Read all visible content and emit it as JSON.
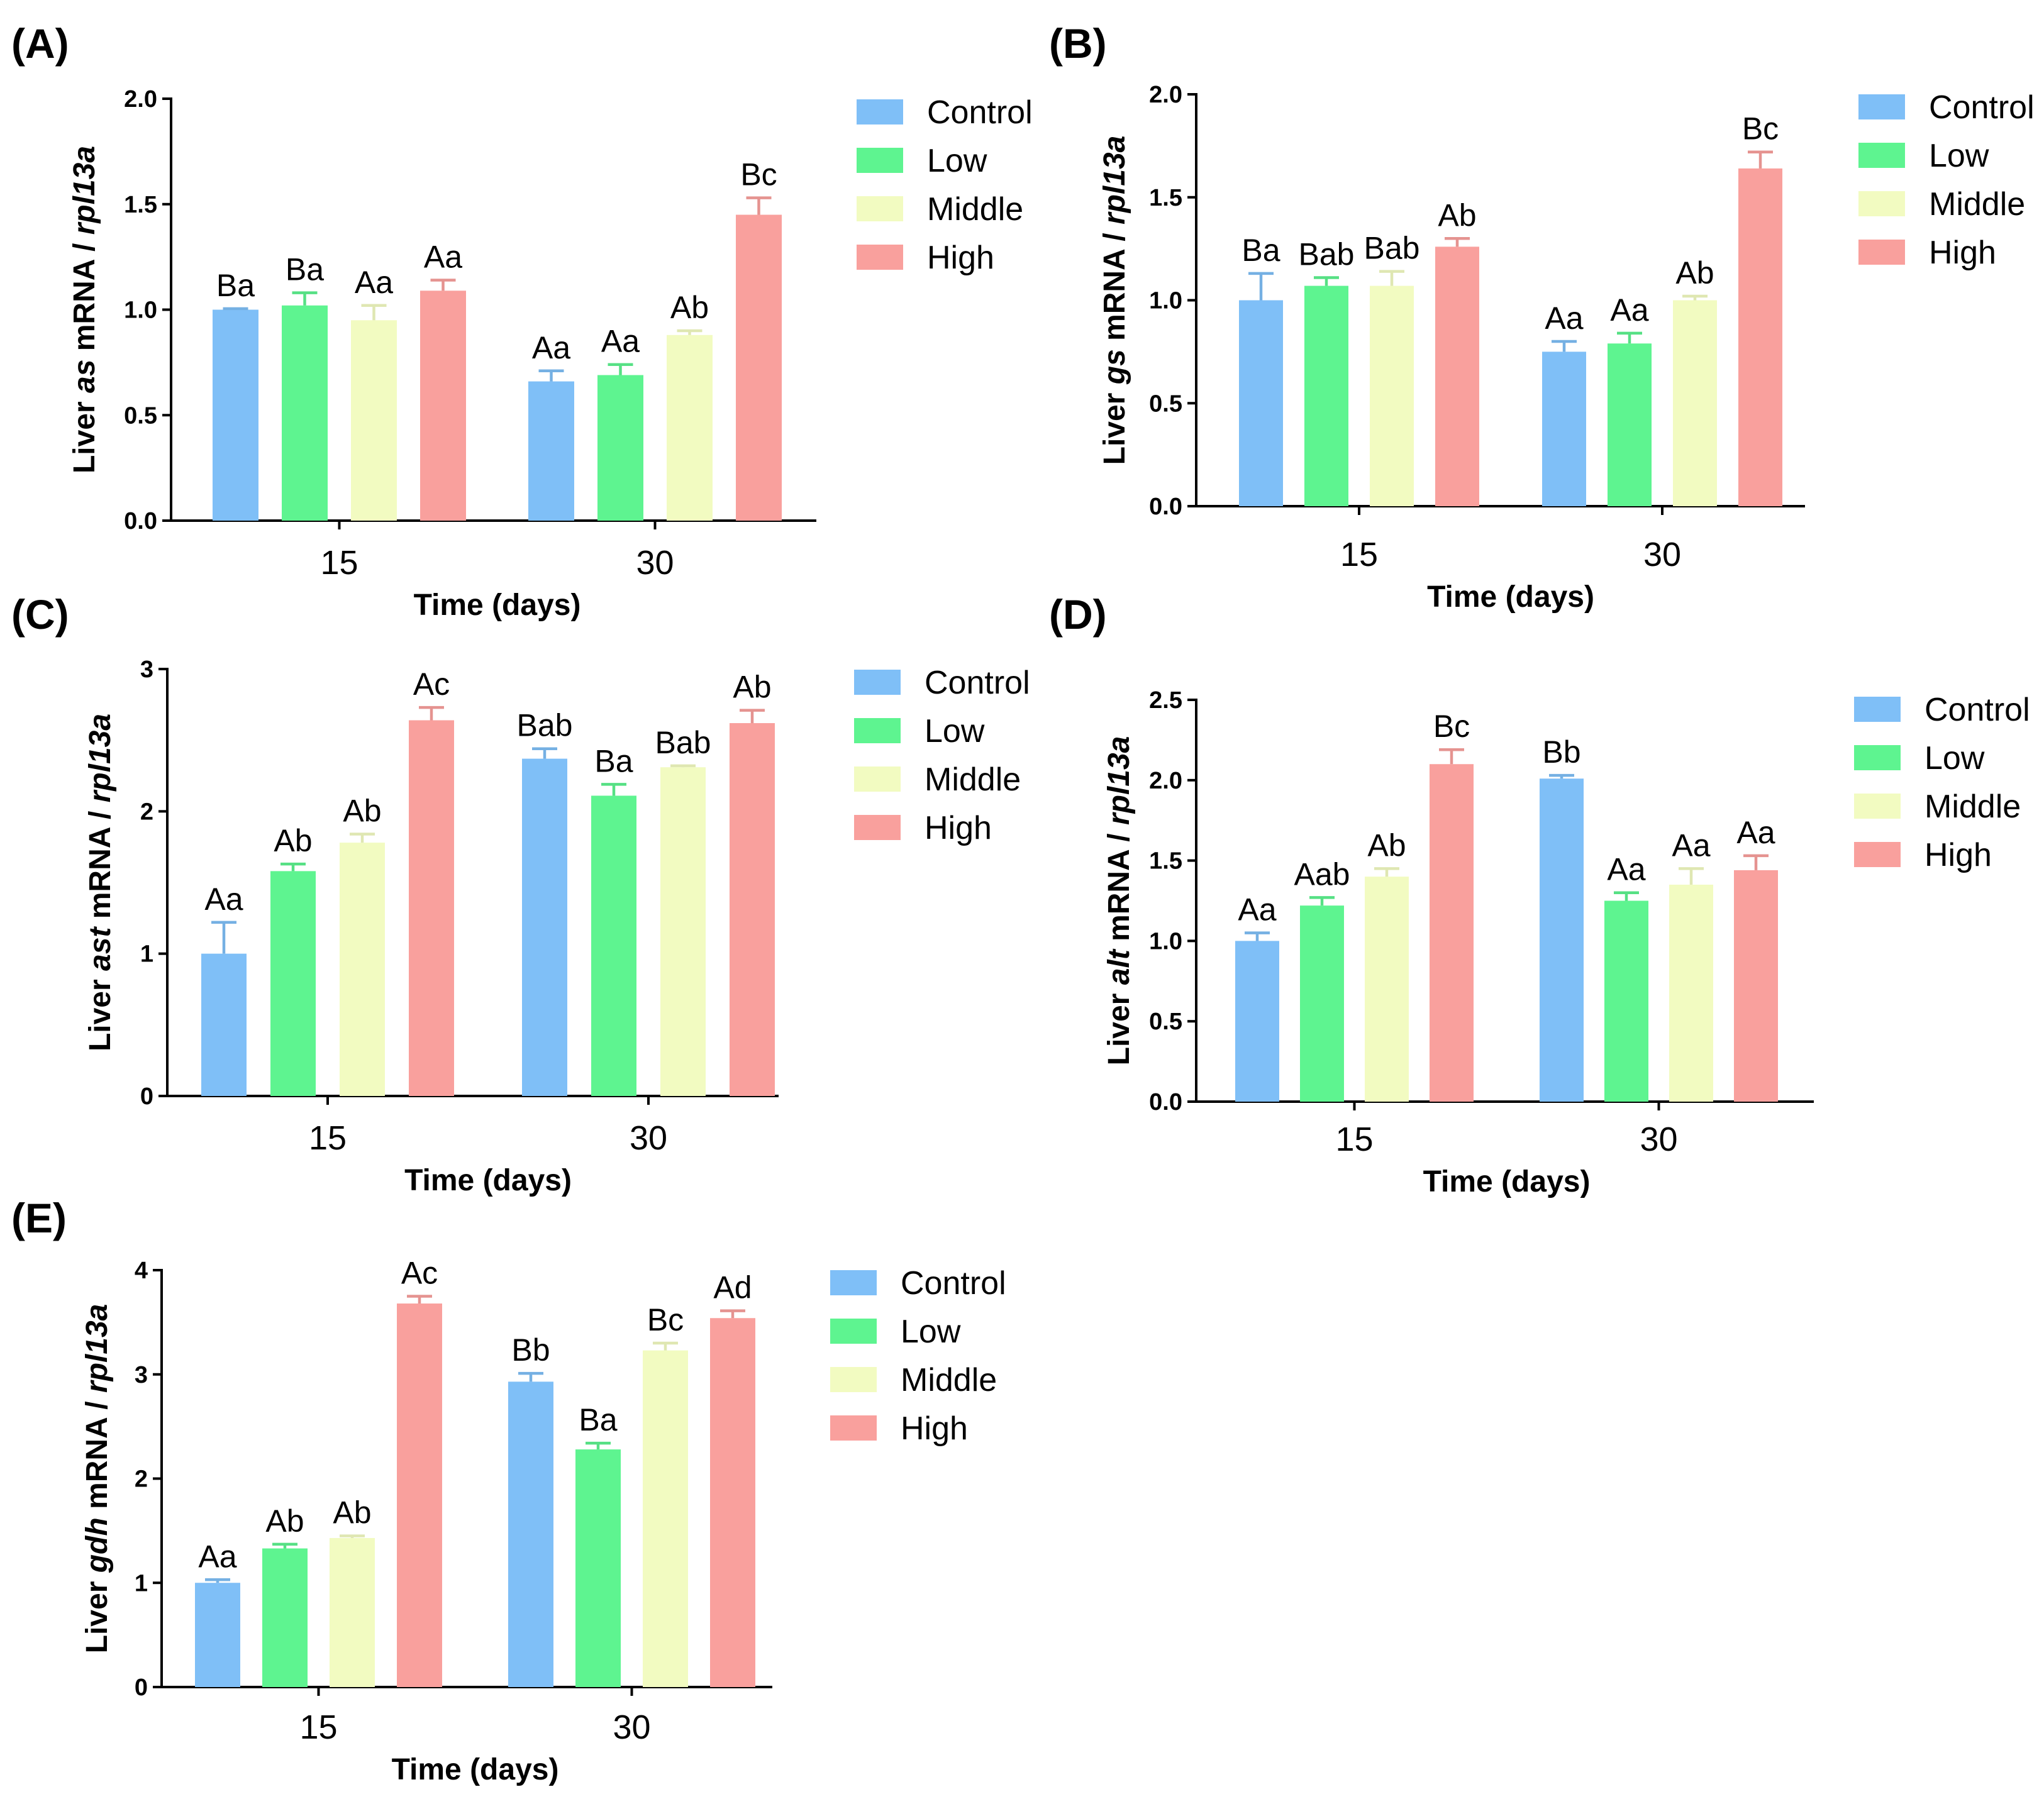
{
  "colors": {
    "Control": "#7fbff7",
    "Low": "#5ef490",
    "Middle": "#f2fbc1",
    "High": "#f9a09d"
  },
  "chart_data": [
    {
      "type": "bar",
      "panel": "(A)",
      "gene": "as",
      "ylabel_prefix": "Liver ",
      "ylabel_suffix": " mRNA / ",
      "ylabel_ref": "rpl13a",
      "xlabel": "Time (days)",
      "categories": [
        "15",
        "30"
      ],
      "ylim": [
        0,
        2.0
      ],
      "yticks": [
        "0.0",
        "0.5",
        "1.0",
        "1.5",
        "2.0"
      ],
      "yticks_values": [
        0,
        0.5,
        1.0,
        1.5,
        2.0
      ],
      "legend": [
        "Control",
        "Low",
        "Middle",
        "High"
      ],
      "series": [
        {
          "name": "Control",
          "values": [
            1.0,
            0.66
          ],
          "errors": [
            0.005,
            0.05
          ],
          "labels": [
            "Ba",
            "Aa"
          ]
        },
        {
          "name": "Low",
          "values": [
            1.02,
            0.69
          ],
          "errors": [
            0.06,
            0.05
          ],
          "labels": [
            "Ba",
            "Aa"
          ]
        },
        {
          "name": "Middle",
          "values": [
            0.95,
            0.88
          ],
          "errors": [
            0.07,
            0.02
          ],
          "labels": [
            "Aa",
            "Ab"
          ]
        },
        {
          "name": "High",
          "values": [
            1.09,
            1.45
          ],
          "errors": [
            0.05,
            0.08
          ],
          "labels": [
            "Aa",
            "Bc"
          ]
        }
      ]
    },
    {
      "type": "bar",
      "panel": "(B)",
      "gene": "gs",
      "ylabel_prefix": "Liver ",
      "ylabel_suffix": " mRNA / ",
      "ylabel_ref": "rpl13a",
      "xlabel": "Time (days)",
      "categories": [
        "15",
        "30"
      ],
      "ylim": [
        0,
        2.0
      ],
      "yticks": [
        "0.0",
        "0.5",
        "1.0",
        "1.5",
        "2.0"
      ],
      "yticks_values": [
        0,
        0.5,
        1.0,
        1.5,
        2.0
      ],
      "legend": [
        "Control",
        "Low",
        "Middle",
        "High"
      ],
      "series": [
        {
          "name": "Control",
          "values": [
            1.0,
            0.75
          ],
          "errors": [
            0.13,
            0.05
          ],
          "labels": [
            "Ba",
            "Aa"
          ]
        },
        {
          "name": "Low",
          "values": [
            1.07,
            0.79
          ],
          "errors": [
            0.04,
            0.05
          ],
          "labels": [
            "Bab",
            "Aa"
          ]
        },
        {
          "name": "Middle",
          "values": [
            1.07,
            1.0
          ],
          "errors": [
            0.07,
            0.02
          ],
          "labels": [
            "Bab",
            "Ab"
          ]
        },
        {
          "name": "High",
          "values": [
            1.26,
            1.64
          ],
          "errors": [
            0.04,
            0.08
          ],
          "labels": [
            "Ab",
            "Bc"
          ]
        }
      ]
    },
    {
      "type": "bar",
      "panel": "(C)",
      "gene": "ast",
      "ylabel_prefix": "Liver ",
      "ylabel_suffix": " mRNA / ",
      "ylabel_ref": "rpl13a",
      "xlabel": "Time (days)",
      "categories": [
        "15",
        "30"
      ],
      "ylim": [
        0,
        3
      ],
      "yticks": [
        "0",
        "1",
        "2",
        "3"
      ],
      "yticks_values": [
        0,
        1,
        2,
        3
      ],
      "legend": [
        "Control",
        "Low",
        "Middle",
        "High"
      ],
      "series": [
        {
          "name": "Control",
          "values": [
            1.0,
            2.37
          ],
          "errors": [
            0.22,
            0.07
          ],
          "labels": [
            "Aa",
            "Bab"
          ]
        },
        {
          "name": "Low",
          "values": [
            1.58,
            2.11
          ],
          "errors": [
            0.05,
            0.08
          ],
          "labels": [
            "Ab",
            "Ba"
          ]
        },
        {
          "name": "Middle",
          "values": [
            1.78,
            2.31
          ],
          "errors": [
            0.06,
            0.01
          ],
          "labels": [
            "Ab",
            "Bab"
          ]
        },
        {
          "name": "High",
          "values": [
            2.64,
            2.62
          ],
          "errors": [
            0.09,
            0.09
          ],
          "labels": [
            "Ac",
            "Ab"
          ]
        }
      ]
    },
    {
      "type": "bar",
      "panel": "(D)",
      "gene": "alt",
      "ylabel_prefix": "Liver ",
      "ylabel_suffix": " mRNA / ",
      "ylabel_ref": "rpl13a",
      "xlabel": "Time (days)",
      "categories": [
        "15",
        "30"
      ],
      "ylim": [
        0,
        2.5
      ],
      "yticks": [
        "0.0",
        "0.5",
        "1.0",
        "1.5",
        "2.0",
        "2.5"
      ],
      "yticks_values": [
        0,
        0.5,
        1.0,
        1.5,
        2.0,
        2.5
      ],
      "legend": [
        "Control",
        "Low",
        "Middle",
        "High"
      ],
      "series": [
        {
          "name": "Control",
          "values": [
            1.0,
            2.01
          ],
          "errors": [
            0.05,
            0.02
          ],
          "labels": [
            "Aa",
            "Bb"
          ]
        },
        {
          "name": "Low",
          "values": [
            1.22,
            1.25
          ],
          "errors": [
            0.05,
            0.05
          ],
          "labels": [
            "Aab",
            "Aa"
          ]
        },
        {
          "name": "Middle",
          "values": [
            1.4,
            1.35
          ],
          "errors": [
            0.05,
            0.1
          ],
          "labels": [
            "Ab",
            "Aa"
          ]
        },
        {
          "name": "High",
          "values": [
            2.1,
            1.44
          ],
          "errors": [
            0.09,
            0.09
          ],
          "labels": [
            "Bc",
            "Aa"
          ]
        }
      ]
    },
    {
      "type": "bar",
      "panel": "(E)",
      "gene": "gdh",
      "ylabel_prefix": "Liver ",
      "ylabel_suffix": " mRNA / ",
      "ylabel_ref": "rpl13a",
      "xlabel": "Time (days)",
      "categories": [
        "15",
        "30"
      ],
      "ylim": [
        0,
        4
      ],
      "yticks": [
        "0",
        "1",
        "2",
        "3",
        "4"
      ],
      "yticks_values": [
        0,
        1,
        2,
        3,
        4
      ],
      "legend": [
        "Control",
        "Low",
        "Middle",
        "High"
      ],
      "series": [
        {
          "name": "Control",
          "values": [
            1.0,
            2.93
          ],
          "errors": [
            0.03,
            0.08
          ],
          "labels": [
            "Aa",
            "Bb"
          ]
        },
        {
          "name": "Low",
          "values": [
            1.33,
            2.28
          ],
          "errors": [
            0.04,
            0.06
          ],
          "labels": [
            "Ab",
            "Ba"
          ]
        },
        {
          "name": "Middle",
          "values": [
            1.43,
            3.23
          ],
          "errors": [
            0.02,
            0.07
          ],
          "labels": [
            "Ab",
            "Bc"
          ]
        },
        {
          "name": "High",
          "values": [
            3.68,
            3.54
          ],
          "errors": [
            0.07,
            0.07
          ],
          "labels": [
            "Ac",
            "Ad"
          ]
        }
      ]
    }
  ]
}
